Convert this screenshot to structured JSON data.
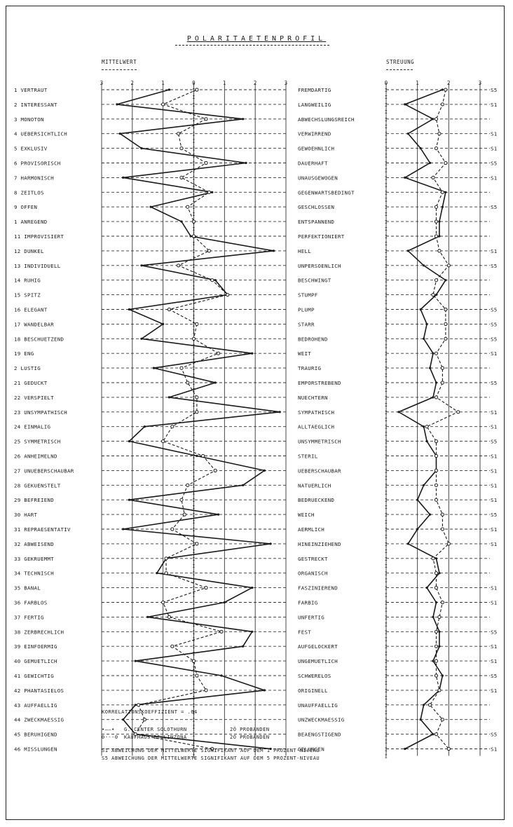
{
  "page": {
    "title": "POLARITAETENPROFIL",
    "left_header": "MITTELWERT",
    "right_header": "STREUUNG",
    "correlation": "KORRELATIONSKOEFFIZIENT =    .64",
    "legend": [
      {
        "marker": "•——•",
        "label": "G.-CENTER SOLOTHURN",
        "count": "2Ö PROBANDEN",
        "style": "solid"
      },
      {
        "marker": "0---0",
        "label": "KAUFHAUS BELLINZONA",
        "count": "2Ö PROBANDEN",
        "style": "dashed"
      }
    ],
    "notes": [
      "S1 ABWEICHUNG DER MITTELWERTE SIGNIFIKANT AUF DEM 1 PROZENT-NIVEAU",
      "S5 ABWEICHUNG DER MITTELWERTE SIGNIFIKANT AUF DEM 5 PROZENT-NIVEAU"
    ]
  },
  "chart_data": [
    {
      "type": "line",
      "name": "MITTELWERT",
      "x_ticks": [
        "3",
        "2",
        "1",
        "0",
        "1",
        "2",
        "3"
      ],
      "xlim": [
        -3,
        3
      ],
      "left_labels": [
        "1 VERTRAUT",
        "2 INTERESSANT",
        "3 MONOTON",
        "4 UEBERSICHTLICH",
        "5 EXKLUSIV",
        "6 PROVISORISCH",
        "7 HARMONISCH",
        "8 ZEITLOS",
        "9 OFFEN",
        "1 ANREGEND",
        "11 IMPROVISIERT",
        "12 DUNKEL",
        "13 INDIVIDUELL",
        "14 RUHIG",
        "15 SPITZ",
        "16 ELEGANT",
        "17 WANDELBAR",
        "18 BESCHUETZEND",
        "19 ENG",
        "2 LUSTIG",
        "21 GEDUCKT",
        "22 VERSPIELT",
        "23 UNSYMPATHISCH",
        "24 EINMALIG",
        "25 SYMMETRISCH",
        "26 ANHEIMELND",
        "27 UNUEBERSCHAUBAR",
        "28 GEKUENSTELT",
        "29 BEFREIEND",
        "30 HART",
        "31 REPRAESENTATIV",
        "32 ABWEISEND",
        "33 GEKRUEMMT",
        "34 TECHNISCH",
        "35 BANAL",
        "36 FARBLOS",
        "37 FERTIG",
        "38 ZERBRECHLICH",
        "39 EINFOERMIG",
        "40 GEMUETLICH",
        "41 GEWICHTIG",
        "42 PHANTASIELOS",
        "43 AUFFAELLIG",
        "44 ZWECKMAESSIG",
        "45 BERUHIGEND",
        "46 MISSLUNGEN"
      ],
      "right_labels": [
        "FREMDARTIG",
        "LANGWEILIG",
        "ABWECHSLUNGSREICH",
        "VERWIRREND",
        "GEWOEHNLICH",
        "DAUERHAFT",
        "UNAUSGEWOGEN",
        "GEGENWARTSBEDINGT",
        "GESCHLOSSEN",
        "ENTSPANNEND",
        "PERFEKTIONIERT",
        "HELL",
        "UNPERSOENLICH",
        "BESCHWINGT",
        "STUMPF",
        "PLUMP",
        "STARR",
        "BEDROHEND",
        "WEIT",
        "TRAURIG",
        "EMPORSTREBEND",
        "NUECHTERN",
        "SYMPATHISCH",
        "ALLTAEGLICH",
        "UNSYMMETRISCH",
        "STERIL",
        "UEBERSCHAUBAR",
        "NATUERLICH",
        "BEDRUECKEND",
        "WEICH",
        "AERMLICH",
        "HINEINZIEHEND",
        "GESTRECKT",
        "ORGANISCH",
        "FASZINIEREND",
        "FARBIG",
        "UNFERTIG",
        "FEST",
        "AUFGELOCKERT",
        "UNGEMUETLICH",
        "SCHWERELOS",
        "ORIGINELL",
        "UNAUFFAELLIG",
        "UNZWECKMAESSIG",
        "BEAENGSTIGEND",
        "GELUNGEN"
      ],
      "series": [
        {
          "name": "G.-CENTER SOLOTHURN",
          "style": "solid",
          "values": [
            -0.8,
            -2.5,
            1.6,
            -2.4,
            -1.7,
            1.7,
            -2.3,
            0.6,
            -1.4,
            -0.4,
            -0.1,
            2.6,
            -1.7,
            0.7,
            1.1,
            -2.1,
            -1.0,
            -1.7,
            1.9,
            -1.3,
            0.7,
            -0.8,
            2.8,
            -1.6,
            -2.1,
            0.1,
            2.3,
            1.6,
            -2.1,
            0.8,
            -2.3,
            2.5,
            -0.9,
            -1.2,
            1.9,
            1.0,
            -1.5,
            1.9,
            1.6,
            -1.9,
            0.9,
            2.3,
            -1.9,
            -2.3,
            -1.9,
            2.5
          ]
        },
        {
          "name": "KAUFHAUS BELLINZONA",
          "style": "dashed",
          "values": [
            0.1,
            -1.0,
            0.4,
            -0.5,
            -0.4,
            0.4,
            -0.4,
            0.5,
            -0.2,
            0.0,
            0.0,
            0.5,
            -0.5,
            0.6,
            1.1,
            -0.8,
            0.1,
            0.0,
            0.8,
            -0.4,
            -0.2,
            0.1,
            0.1,
            -0.7,
            -1.0,
            0.3,
            0.7,
            -0.2,
            -0.4,
            -0.3,
            -0.7,
            0.1,
            -0.9,
            -0.9,
            0.4,
            -1.0,
            -0.8,
            0.9,
            -0.7,
            0.0,
            0.1,
            0.4,
            -1.8,
            -1.6,
            -1.9,
            0.6
          ]
        }
      ]
    },
    {
      "type": "line",
      "name": "STREUUNG",
      "x_ticks": [
        "0",
        "1",
        "2",
        "3"
      ],
      "xlim": [
        0,
        3
      ],
      "significance": [
        "S5",
        "S1",
        "",
        "S1",
        "S1",
        "S5",
        "S1",
        "",
        "S5",
        "",
        "",
        "S1",
        "S5",
        "",
        "",
        "S5",
        "S5",
        "S5",
        "S1",
        "",
        "S5",
        "",
        "S1",
        "S1",
        "S5",
        "S1",
        "S1",
        "S1",
        "S1",
        "S5",
        "S1",
        "S1",
        "",
        "",
        "S1",
        "S1",
        "",
        "S5",
        "S1",
        "S1",
        "S5",
        "S1",
        "",
        "",
        "S5",
        "S1"
      ],
      "series": [
        {
          "name": "G.-CENTER SOLOTHURN",
          "style": "solid",
          "values": [
            1.8,
            0.6,
            1.5,
            0.7,
            1.1,
            1.4,
            0.6,
            1.9,
            1.8,
            1.7,
            1.7,
            0.7,
            1.2,
            1.9,
            1.6,
            1.1,
            1.3,
            1.2,
            1.5,
            1.4,
            1.6,
            1.5,
            0.4,
            1.2,
            1.3,
            1.6,
            1.6,
            1.2,
            1.0,
            1.4,
            1.0,
            0.7,
            1.6,
            1.7,
            1.3,
            1.6,
            1.5,
            1.7,
            1.7,
            1.5,
            1.8,
            1.7,
            1.2,
            1.1,
            1.5,
            0.6
          ]
        },
        {
          "name": "KAUFHAUS BELLINZONA",
          "style": "dashed",
          "values": [
            1.9,
            1.8,
            1.6,
            1.7,
            1.6,
            1.9,
            1.5,
            1.8,
            1.6,
            1.6,
            1.6,
            1.7,
            2.0,
            1.6,
            1.5,
            1.9,
            1.9,
            1.9,
            1.6,
            1.8,
            1.8,
            1.6,
            2.3,
            1.3,
            1.6,
            1.6,
            1.6,
            1.6,
            1.6,
            1.8,
            1.8,
            2.0,
            1.5,
            1.6,
            1.6,
            1.8,
            1.7,
            1.6,
            1.6,
            1.6,
            1.6,
            1.7,
            1.4,
            1.8,
            1.6,
            2.0
          ]
        }
      ]
    }
  ]
}
